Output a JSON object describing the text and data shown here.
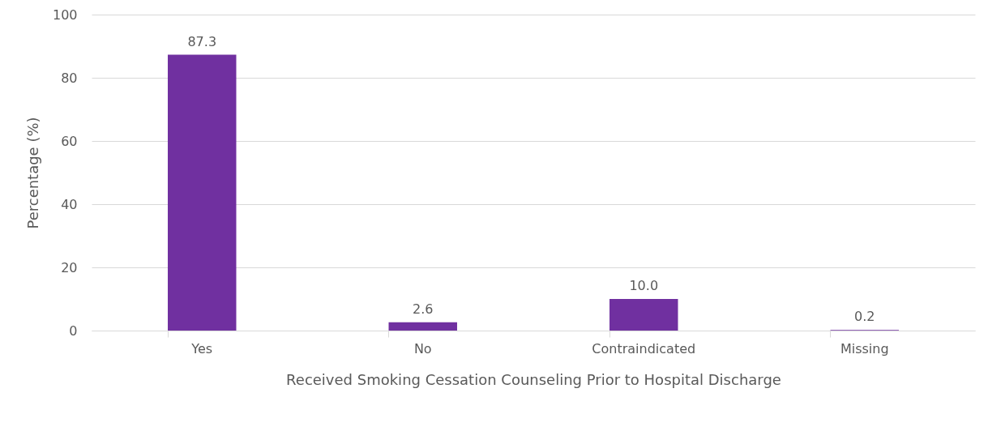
{
  "chart_data": {
    "type": "bar",
    "xlabel": "Received Smoking Cessation Counseling Prior to Hospital Discharge",
    "ylabel": "Percentage (%)",
    "categories": [
      "Yes",
      "No",
      "Contraindicated",
      "Missing"
    ],
    "values": [
      87.3,
      2.6,
      10.0,
      0.2
    ],
    "value_labels": [
      "87.3",
      "2.6",
      "10.0",
      "0.2"
    ],
    "color": "#7030a0",
    "ylim": [
      0,
      100
    ],
    "yticks": [
      0,
      20,
      40,
      60,
      80,
      100
    ],
    "grid": "y"
  }
}
